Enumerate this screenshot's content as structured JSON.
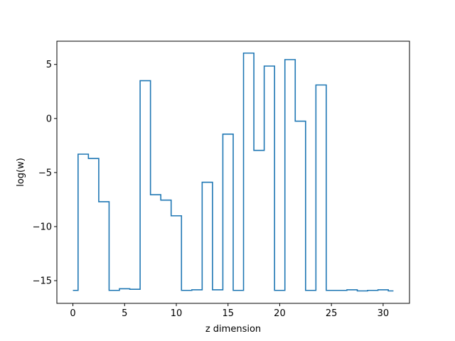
{
  "chart_data": {
    "type": "line",
    "drawstyle": "steps-mid",
    "xlabel": "z dimension",
    "ylabel": "log(w)",
    "xlim": [
      -1.55,
      32.55
    ],
    "ylim": [
      -17.1,
      7.15
    ],
    "x_ticks": [
      0,
      5,
      10,
      15,
      20,
      25,
      30
    ],
    "y_ticks": [
      -15,
      -10,
      -5,
      0,
      5
    ],
    "grid": false,
    "legend": "none",
    "series_color": "#1f77b4",
    "x": [
      0,
      1,
      2,
      3,
      4,
      5,
      6,
      7,
      8,
      9,
      10,
      11,
      12,
      13,
      14,
      15,
      16,
      17,
      18,
      19,
      20,
      21,
      22,
      23,
      24,
      25,
      26,
      27,
      28,
      29,
      30,
      31
    ],
    "y": [
      -15.9,
      -3.3,
      -3.7,
      -7.7,
      -15.9,
      -15.75,
      -15.8,
      3.5,
      -7.05,
      -7.55,
      -9.0,
      -15.9,
      -15.85,
      -5.9,
      -15.85,
      -1.45,
      -15.9,
      6.05,
      -2.95,
      4.85,
      -15.9,
      5.45,
      -0.25,
      -15.9,
      3.1,
      -15.9,
      -15.9,
      -15.85,
      -15.95,
      -15.9,
      -15.85,
      -15.95
    ]
  }
}
